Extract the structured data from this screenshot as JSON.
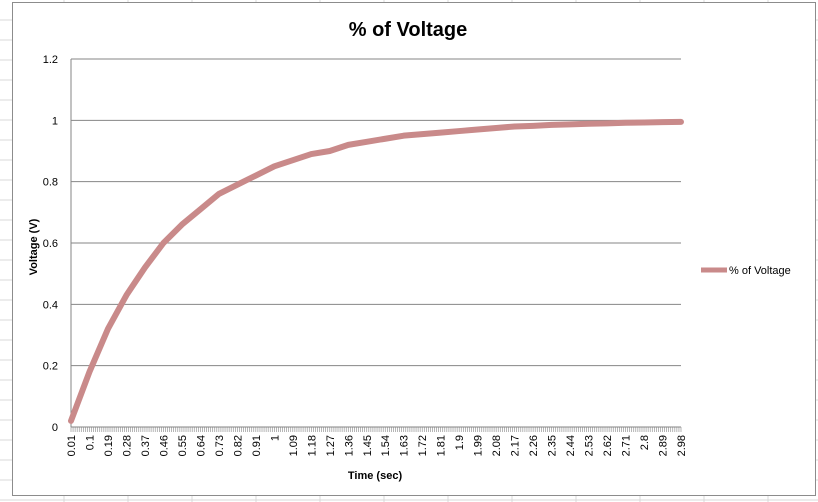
{
  "chart_data": {
    "type": "line",
    "title": "% of Voltage",
    "xlabel": "Time (sec)",
    "ylabel": "Voltage (V)",
    "ylim": [
      0,
      1.2
    ],
    "yticks": [
      "0",
      "0.2",
      "0.4",
      "0.6",
      "0.8",
      "1",
      "1.2"
    ],
    "xtick_labels": [
      "0.01",
      "0.1",
      "0.19",
      "0.28",
      "0.37",
      "0.46",
      "0.55",
      "0.64",
      "0.73",
      "0.82",
      "0.91",
      "1",
      "1.09",
      "1.18",
      "1.27",
      "1.36",
      "1.45",
      "1.54",
      "1.63",
      "1.72",
      "1.81",
      "1.9",
      "1.99",
      "2.08",
      "2.17",
      "2.26",
      "2.35",
      "2.44",
      "2.53",
      "2.62",
      "2.71",
      "2.8",
      "2.89",
      "2.98"
    ],
    "x_start": 0.01,
    "x_step": 0.01,
    "x_end": 2.98,
    "grid": true,
    "legend_position": "right",
    "series": [
      {
        "name": "% of Voltage",
        "color": "#c98a8a",
        "sample_x": [
          0.01,
          0.1,
          0.19,
          0.28,
          0.37,
          0.46,
          0.55,
          0.64,
          0.73,
          0.82,
          0.91,
          1.0,
          1.09,
          1.18,
          1.27,
          1.36,
          1.45,
          1.54,
          1.63,
          1.72,
          1.81,
          1.9,
          1.99,
          2.08,
          2.17,
          2.26,
          2.35,
          2.44,
          2.53,
          2.62,
          2.71,
          2.8,
          2.89,
          2.98
        ],
        "sample_y": [
          0.02,
          0.18,
          0.32,
          0.43,
          0.52,
          0.6,
          0.66,
          0.71,
          0.76,
          0.79,
          0.82,
          0.85,
          0.87,
          0.89,
          0.9,
          0.92,
          0.93,
          0.94,
          0.95,
          0.955,
          0.96,
          0.965,
          0.97,
          0.975,
          0.98,
          0.982,
          0.985,
          0.987,
          0.989,
          0.99,
          0.992,
          0.993,
          0.994,
          0.995
        ]
      }
    ]
  }
}
